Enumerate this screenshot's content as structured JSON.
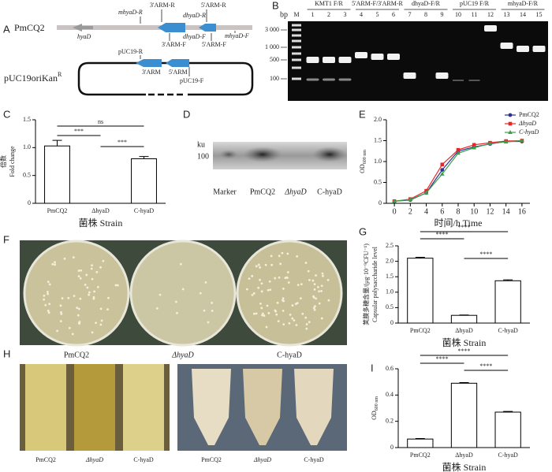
{
  "panel_labels": {
    "a": "A",
    "b": "B",
    "c": "C",
    "d": "D",
    "e": "E",
    "f": "F",
    "g": "G",
    "h": "H",
    "i": "I"
  },
  "panel_a": {
    "strain": "PmCQ2",
    "plasmid": "pUC19oriKan",
    "plasmid_sup": "R",
    "gene": "hyaD",
    "primers": {
      "mhyaD_r": "mhyaD-R",
      "arm3_r": "3'ARM-R",
      "arm5_r": "5'ARM-R",
      "dhyaD_r": "dhyaD-R",
      "mhyaD_f": "mhyaD-F",
      "arm3_f": "3'ARM-F",
      "dhyaD_f": "dhyaD-F",
      "arm5_f": "5'ARM-F",
      "puc19_r": "pUC19-R",
      "puc19_f": "pUC19-F"
    },
    "arms": {
      "arm3": "3'ARM",
      "arm5": "5'ARM"
    }
  },
  "panel_b": {
    "unit": "bp",
    "lanes": [
      "M",
      "1",
      "2",
      "3",
      "4",
      "5",
      "6",
      "7",
      "8",
      "9",
      "10",
      "11",
      "12",
      "13",
      "14",
      "15"
    ],
    "size_labels": [
      "3 000",
      "1 000",
      "500",
      "100"
    ],
    "groups": [
      "KMT1 F/R",
      "5'ARM-F/3'ARM-R",
      "dhyaD-F/R",
      "pUC19 F/R",
      "mhyaD-F/R"
    ]
  },
  "panel_d": {
    "unit": "ku",
    "size_label": "100",
    "lanes": [
      "Marker",
      "PmCQ2",
      "ΔhyaD",
      "C-hyaD"
    ]
  },
  "panel_f": {
    "labels": [
      "PmCQ2",
      "ΔhyaD",
      "C-hyaD"
    ]
  },
  "panel_h": {
    "left_labels": [
      "PmCQ2",
      "ΔhyaD",
      "C-hyaD"
    ],
    "right_labels": [
      "PmCQ2",
      "ΔhyaD",
      "C-hyaD"
    ]
  },
  "chart_data": [
    {
      "type": "bar",
      "categories": [
        "PmCQ2",
        "ΔhyaD",
        "C-hyaD"
      ],
      "values": [
        1.03,
        0,
        0.8
      ],
      "errors": [
        0.1,
        0,
        0.04
      ],
      "color": "#ffffff",
      "ylim": [
        0,
        1.5
      ],
      "yticks": [
        0,
        0.5,
        {
          "value": 1,
          "label": "1.0"
        },
        1.5
      ],
      "ylabel": [
        "倍数",
        "Fold change"
      ],
      "xlabel": "菌株  Strain",
      "significance": [
        "ns",
        "***",
        "***"
      ]
    },
    {
      "type": "line",
      "x": [
        0,
        2,
        4,
        6,
        8,
        10,
        12,
        14,
        16
      ],
      "xlim": [
        -1,
        17
      ],
      "xticks": [
        0,
        2,
        4,
        6,
        8,
        10,
        12,
        14,
        16
      ],
      "ylim": [
        0,
        2
      ],
      "yticks": [
        0,
        0.5,
        {
          "value": 1,
          "label": "1.0"
        },
        1.5,
        {
          "value": 2,
          "label": "2.0"
        }
      ],
      "ylabel": [
        "OD"
      ],
      "ylabel_sub": "600 nm",
      "xlabel": "时间/h  Time",
      "series": [
        {
          "name": "PmCQ2",
          "color": "#2e3192",
          "values": [
            0.05,
            0.08,
            0.25,
            0.8,
            1.25,
            1.35,
            1.42,
            1.48,
            1.48
          ]
        },
        {
          "name": "ΔhyaD",
          "color": "#e8262a",
          "values": [
            0.05,
            0.1,
            0.3,
            0.93,
            1.28,
            1.4,
            1.45,
            1.49,
            1.5
          ]
        },
        {
          "name": "C-hyaD",
          "color": "#3aa047",
          "values": [
            0.05,
            0.09,
            0.25,
            0.7,
            1.2,
            1.33,
            1.43,
            1.47,
            1.5
          ]
        }
      ]
    },
    {
      "type": "bar",
      "categories": [
        "PmCQ2",
        "ΔhyaD",
        "C-hyaD"
      ],
      "values": [
        2.1,
        0.25,
        1.37
      ],
      "errors": [
        0.03,
        0.01,
        0.03
      ],
      "color": "#ffffff",
      "ylim": [
        0,
        2.5
      ],
      "yticks": [
        0,
        0.5,
        {
          "value": 1,
          "label": "1.0"
        },
        1.5,
        {
          "value": 2,
          "label": "2.0"
        },
        2.5
      ],
      "ylabel": [
        "荚膜多糖含量/(μg·10⁻⁹CFU⁻¹)",
        "Capsular polysaccharide level"
      ],
      "xlabel": "菌株  Strain",
      "significance": [
        "****",
        "****",
        "****"
      ]
    },
    {
      "type": "bar",
      "categories": [
        "PmCQ2",
        "ΔhyaD",
        "C-hyaD"
      ],
      "values": [
        0.065,
        0.49,
        0.27
      ],
      "errors": [
        0.004,
        0.005,
        0.005
      ],
      "color": "#ffffff",
      "ylim": [
        0,
        0.6
      ],
      "yticks": [
        0,
        0.2,
        0.4,
        0.6
      ],
      "ylabel": [
        "OD"
      ],
      "ylabel_sub": "600 nm",
      "xlabel": "菌株  Strain",
      "significance": [
        "****",
        "****",
        "****"
      ]
    }
  ]
}
